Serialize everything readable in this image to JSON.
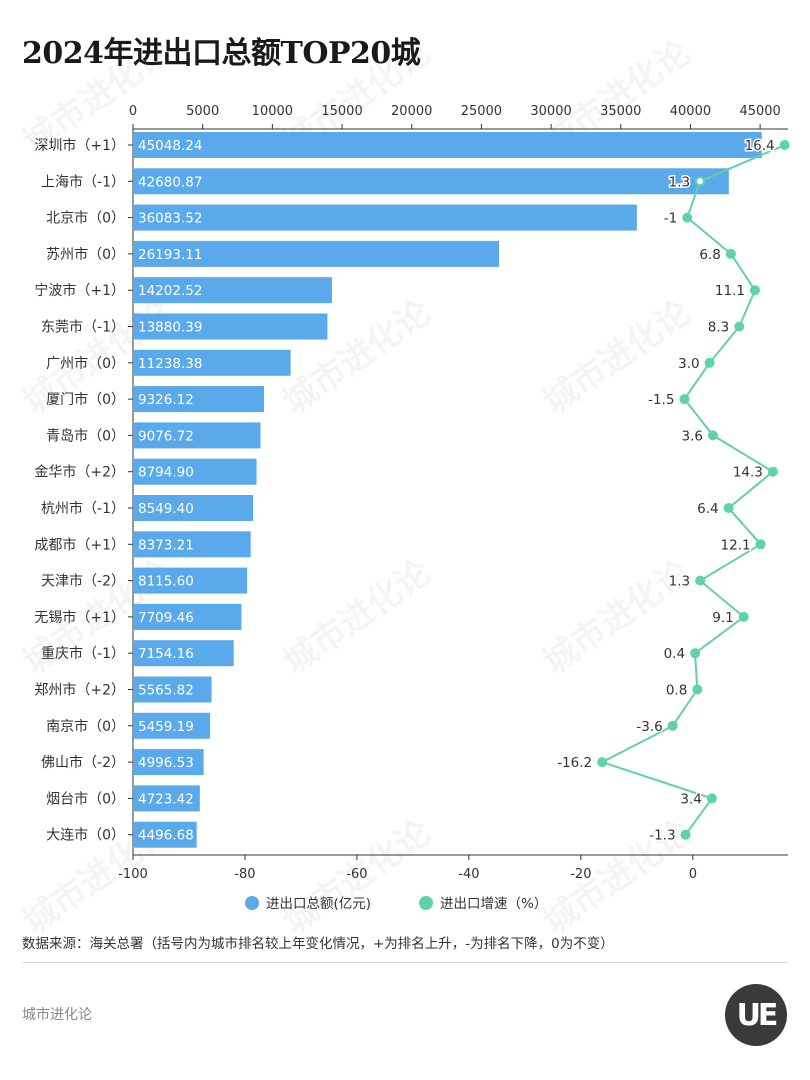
{
  "title": "2024年进出口总额TOP20城",
  "colors": {
    "bar": "#5aa9ea",
    "line": "#5fd3a5",
    "axis": "#333333"
  },
  "chart_data": {
    "type": "bar",
    "orientation": "horizontal",
    "title": "2024年进出口总额TOP20城",
    "categories": [
      "深圳市（+1）",
      "上海市（-1）",
      "北京市（0）",
      "苏州市（0）",
      "宁波市（+1）",
      "东莞市（-1）",
      "广州市（0）",
      "厦门市（0）",
      "青岛市（0）",
      "金华市（+2）",
      "杭州市（-1）",
      "成都市（+1）",
      "天津市（-2）",
      "无锡市（+1）",
      "重庆市（-1）",
      "郑州市（+2）",
      "南京市（0）",
      "佛山市（-2）",
      "烟台市（0）",
      "大连市（0）"
    ],
    "series": [
      {
        "name": "进出口总额(亿元)",
        "type": "bar",
        "axis": "top",
        "values": [
          45048.24,
          42680.87,
          36083.52,
          26193.11,
          14202.52,
          13880.39,
          11238.38,
          9326.12,
          9076.72,
          8794.9,
          8549.4,
          8373.21,
          8115.6,
          7709.46,
          7154.16,
          5565.82,
          5459.19,
          4996.53,
          4723.42,
          4496.68
        ],
        "labels": [
          "45048.24",
          "42680.87",
          "36083.52",
          "26193.11",
          "14202.52",
          "13880.39",
          "11238.38",
          "9326.12",
          "9076.72",
          "8794.90",
          "8549.40",
          "8373.21",
          "8115.60",
          "7709.46",
          "7154.16",
          "5565.82",
          "5459.19",
          "4996.53",
          "4723.42",
          "4496.68"
        ]
      },
      {
        "name": "进出口增速（%）",
        "type": "line",
        "axis": "bottom",
        "values": [
          16.4,
          1.3,
          -1,
          6.8,
          11.1,
          8.3,
          3.0,
          -1.5,
          3.6,
          14.3,
          6.4,
          12.1,
          1.3,
          9.1,
          0.4,
          0.8,
          -3.6,
          -16.2,
          3.4,
          -1.3
        ],
        "labels": [
          "16.4",
          "1.3",
          "-1",
          "6.8",
          "11.1",
          "8.3",
          "3.0",
          "-1.5",
          "3.6",
          "14.3",
          "6.4",
          "12.1",
          "1.3",
          "9.1",
          "0.4",
          "0.8",
          "-3.6",
          "-16.2",
          "3.4",
          "-1.3"
        ]
      }
    ],
    "top_axis": {
      "range": [
        0,
        47000
      ],
      "ticks": [
        "0",
        "5000",
        "10000",
        "15000",
        "20000",
        "25000",
        "30000",
        "35000",
        "40000",
        "45000"
      ]
    },
    "bottom_axis": {
      "range": [
        -100,
        17
      ],
      "ticks": [
        "-100",
        "-80",
        "-60",
        "-40",
        "-20",
        "0"
      ]
    },
    "legend": {
      "placement": "bottom",
      "items": [
        "进出口总额(亿元)",
        "进出口增速（%）"
      ]
    }
  },
  "note": "数据来源：海关总署（括号内为城市排名较上年变化情况，+为排名上升，-为排名下降，0为不变）",
  "footer": "城市进化论",
  "logo_text": "UE",
  "watermark": "城市进化论"
}
